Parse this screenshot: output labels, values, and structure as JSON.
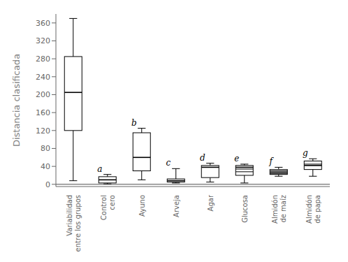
{
  "chart_data": {
    "type": "box",
    "ylabel": "Distancia clasificada",
    "categories": [
      "Variabilidad\nentre los grupos",
      "Control\ncero",
      "Ayuno",
      "Arveja",
      "Agar",
      "Glucosa",
      "Almidón\nde maíz",
      "Almidón\nde papa"
    ],
    "boxes": [
      {
        "q1": 120,
        "median": 205,
        "q3": 285,
        "whisker_low": 8,
        "whisker_high": 370
      },
      {
        "q1": 3,
        "median": 10,
        "q3": 17,
        "whisker_low": 1,
        "whisker_high": 22
      },
      {
        "q1": 30,
        "median": 60,
        "q3": 115,
        "whisker_low": 10,
        "whisker_high": 125
      },
      {
        "q1": 5,
        "median": 8,
        "q3": 12,
        "whisker_low": 3,
        "whisker_high": 35
      },
      {
        "q1": 15,
        "median": 38,
        "q3": 42,
        "whisker_low": 5,
        "whisker_high": 47
      },
      {
        "q1": 20,
        "median": 38,
        "q3": 42,
        "whisker_low": 3,
        "whisker_high": 45
      },
      {
        "q1": 22,
        "median": 27,
        "q3": 33,
        "whisker_low": 18,
        "whisker_high": 38
      },
      {
        "q1": 33,
        "median": 42,
        "q3": 52,
        "whisker_low": 18,
        "whisker_high": 57
      }
    ],
    "sig_letters": [
      null,
      "a",
      "b",
      "c",
      "d",
      "e",
      "f",
      "g"
    ],
    "extra_lines": [
      {
        "box_idx": 5,
        "y_values": [
          28,
          34
        ]
      },
      {
        "box_idx": 6,
        "y_values": [
          24,
          30
        ]
      },
      {
        "box_idx": 7,
        "y_values": [
          45
        ]
      }
    ],
    "ylim": [
      -5,
      380
    ],
    "yticks": [
      0,
      40,
      80,
      120,
      160,
      200,
      240,
      280,
      320,
      360
    ],
    "hlines": [
      0
    ],
    "color": "#000000",
    "grid": false
  }
}
